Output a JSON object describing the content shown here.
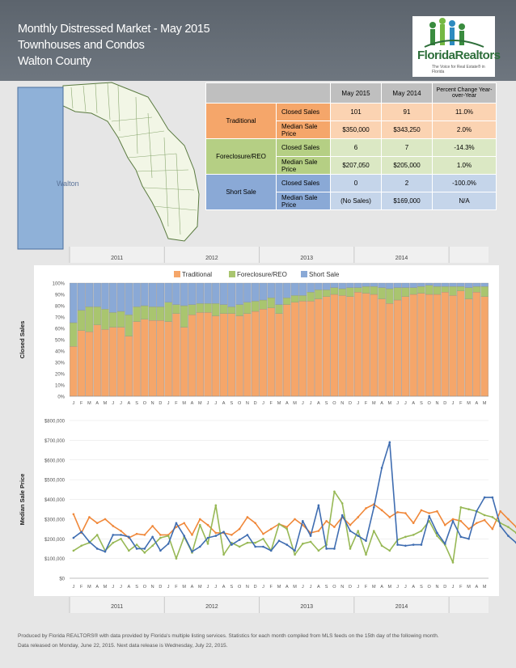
{
  "header": {
    "lines": [
      "Monthly Distressed Market - May 2015",
      "Townhouses and Condos",
      "Walton County"
    ]
  },
  "logo": {
    "name": "FloridaRealtors",
    "tagline": "The Voice for Real Estate® in Florida"
  },
  "map": {
    "label": "Walton"
  },
  "table": {
    "headers": [
      "May 2015",
      "May 2014",
      "Percent Change Year-over-Year"
    ],
    "groups": [
      {
        "name": "Traditional",
        "color": "#f5a66a",
        "light": "#fbd3b2",
        "rows": [
          {
            "metric": "Closed Sales",
            "may2015": "101",
            "may2014": "91",
            "change": "11.0%"
          },
          {
            "metric": "Median Sale Price",
            "may2015": "$350,000",
            "may2014": "$343,250",
            "change": "2.0%"
          }
        ]
      },
      {
        "name": "Foreclosure/REO",
        "color": "#b5cf84",
        "light": "#dbe8c4",
        "rows": [
          {
            "metric": "Closed Sales",
            "may2015": "6",
            "may2014": "7",
            "change": "-14.3%"
          },
          {
            "metric": "Median Sale Price",
            "may2015": "$207,050",
            "may2014": "$205,000",
            "change": "1.0%"
          }
        ]
      },
      {
        "name": "Short Sale",
        "color": "#8aa9d6",
        "light": "#c5d5ea",
        "rows": [
          {
            "metric": "Closed Sales",
            "may2015": "0",
            "may2014": "2",
            "change": "-100.0%"
          },
          {
            "metric": "Median Sale Price",
            "may2015": "(No Sales)",
            "may2014": "$169,000",
            "change": "N/A"
          }
        ]
      }
    ]
  },
  "footer": {
    "line1": "Produced by Florida REALTORS® with data provided by Florida's multiple listing services. Statistics for each month compiled from MLS feeds on the 15th day of the following month.",
    "line2": "Data released on Monday, June 22, 2015. Next data release is Wednesday, July 22, 2015."
  },
  "colors": {
    "traditional": "#f5a66a",
    "reo": "#a9c56f",
    "short": "#8aa9d6",
    "traditional_line": "#f0883a",
    "reo_line": "#97b855",
    "short_line": "#3f6db1"
  },
  "chart_data": [
    {
      "type": "bar",
      "stacked": true,
      "ylabel": "Closed Sales",
      "yticks": [
        "0%",
        "10%",
        "20%",
        "30%",
        "40%",
        "50%",
        "60%",
        "70%",
        "80%",
        "90%",
        "100%"
      ],
      "year_labels": [
        "2011",
        "2012",
        "2013",
        "2014"
      ],
      "month_labels": [
        "J",
        "F",
        "M",
        "A",
        "M",
        "J",
        "J",
        "A",
        "S",
        "O",
        "N",
        "D",
        "J",
        "F",
        "M",
        "A",
        "M",
        "J",
        "J",
        "A",
        "S",
        "O",
        "N",
        "D",
        "J",
        "F",
        "M",
        "A",
        "M",
        "J",
        "J",
        "A",
        "S",
        "O",
        "N",
        "D",
        "J",
        "F",
        "M",
        "A",
        "M",
        "J",
        "J",
        "A",
        "S",
        "O",
        "N",
        "D",
        "J",
        "F",
        "M",
        "A",
        "M"
      ],
      "legend": "top",
      "series": [
        {
          "name": "Traditional",
          "values": [
            44,
            58,
            57,
            63,
            59,
            61,
            61,
            53,
            66,
            68,
            67,
            67,
            66,
            73,
            61,
            72,
            74,
            74,
            71,
            73,
            73,
            71,
            73,
            75,
            77,
            78,
            73,
            81,
            83,
            84,
            84,
            86,
            88,
            90,
            89,
            88,
            92,
            91,
            90,
            86,
            82,
            85,
            88,
            90,
            91,
            90,
            90,
            92,
            89,
            93,
            86,
            92,
            88,
            91,
            94,
            86,
            87,
            95,
            94,
            96,
            93,
            95,
            94
          ]
        },
        {
          "name": "Foreclosure/REO",
          "values": [
            21,
            18,
            22,
            16,
            18,
            13,
            14,
            19,
            13,
            12,
            12,
            12,
            17,
            8,
            19,
            9,
            8,
            8,
            11,
            8,
            6,
            10,
            10,
            9,
            8,
            9,
            8,
            6,
            6,
            5,
            8,
            8,
            6,
            6,
            6,
            8,
            4,
            6,
            7,
            10,
            13,
            11,
            8,
            6,
            6,
            8,
            7,
            5,
            8,
            4,
            10,
            5,
            9,
            5,
            4,
            12,
            10,
            3,
            4,
            3,
            5,
            3,
            6
          ]
        },
        {
          "name": "Short Sale",
          "values": [
            35,
            24,
            21,
            21,
            23,
            26,
            25,
            28,
            21,
            20,
            21,
            21,
            17,
            19,
            20,
            19,
            18,
            18,
            18,
            19,
            21,
            19,
            17,
            16,
            15,
            13,
            19,
            13,
            11,
            11,
            8,
            6,
            6,
            4,
            5,
            4,
            4,
            3,
            3,
            4,
            5,
            4,
            4,
            4,
            3,
            2,
            3,
            3,
            3,
            3,
            4,
            3,
            3,
            4,
            2,
            2,
            3,
            2,
            2,
            1,
            2,
            2,
            0
          ]
        }
      ]
    },
    {
      "type": "line",
      "ylabel": "Median Sale Price",
      "yticks": [
        "$0",
        "$100,000",
        "$200,000",
        "$300,000",
        "$400,000",
        "$500,000",
        "$600,000",
        "$700,000",
        "$800,000"
      ],
      "ylim": [
        0,
        800000
      ],
      "year_labels": [
        "2011",
        "2012",
        "2013",
        "2014"
      ],
      "month_labels": [
        "J",
        "F",
        "M",
        "A",
        "M",
        "J",
        "J",
        "A",
        "S",
        "O",
        "N",
        "D",
        "J",
        "F",
        "M",
        "A",
        "M",
        "J",
        "J",
        "A",
        "S",
        "O",
        "N",
        "D",
        "J",
        "F",
        "M",
        "A",
        "M",
        "J",
        "J",
        "A",
        "S",
        "O",
        "N",
        "D",
        "J",
        "F",
        "M",
        "A",
        "M",
        "J",
        "J",
        "A",
        "S",
        "O",
        "N",
        "D",
        "J",
        "F",
        "M",
        "A",
        "M"
      ],
      "series": [
        {
          "name": "Traditional",
          "values": [
            325,
            230,
            310,
            280,
            300,
            265,
            240,
            205,
            225,
            220,
            265,
            220,
            220,
            260,
            280,
            220,
            300,
            270,
            230,
            230,
            220,
            250,
            310,
            280,
            225,
            250,
            275,
            260,
            300,
            270,
            230,
            240,
            290,
            260,
            310,
            270,
            310,
            355,
            375,
            345,
            310,
            335,
            330,
            280,
            345,
            330,
            340,
            270,
            300,
            290,
            250,
            280,
            295,
            250,
            340,
            300,
            260,
            280,
            430,
            320,
            350,
            350,
            350
          ]
        },
        {
          "name": "Foreclosure/REO",
          "values": [
            140,
            165,
            180,
            220,
            140,
            180,
            200,
            140,
            170,
            130,
            165,
            205,
            215,
            100,
            210,
            130,
            270,
            175,
            370,
            120,
            180,
            160,
            180,
            180,
            200,
            140,
            275,
            250,
            120,
            175,
            185,
            140,
            170,
            440,
            380,
            150,
            240,
            120,
            240,
            165,
            140,
            195,
            210,
            220,
            240,
            290,
            215,
            170,
            80,
            360,
            350,
            340,
            320,
            310,
            280,
            260,
            230,
            200,
            160,
            210,
            290,
            285,
            205
          ]
        },
        {
          "name": "Short Sale",
          "values": [
            205,
            235,
            185,
            150,
            135,
            220,
            220,
            210,
            150,
            150,
            210,
            140,
            175,
            280,
            215,
            135,
            160,
            205,
            215,
            235,
            170,
            195,
            220,
            160,
            160,
            140,
            190,
            170,
            140,
            290,
            215,
            370,
            150,
            150,
            320,
            240,
            215,
            190,
            360,
            560,
            690,
            170,
            165,
            170,
            170,
            315,
            230,
            175,
            290,
            210,
            200,
            340,
            410,
            410,
            265,
            215,
            180,
            145,
            120,
            115,
            115,
            null,
            null
          ]
        }
      ]
    }
  ]
}
